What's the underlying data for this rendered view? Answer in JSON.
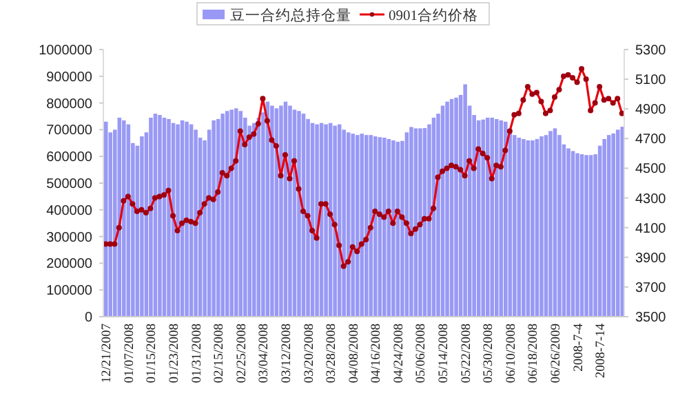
{
  "chart_data": {
    "type": "bar",
    "legend": "top",
    "categories": [
      "12/21/2007",
      null,
      null,
      null,
      null,
      "01/07/2008",
      null,
      null,
      null,
      null,
      "01/15/2008",
      null,
      null,
      null,
      null,
      "01/23/2008",
      null,
      null,
      null,
      null,
      "01/31/2008",
      null,
      null,
      null,
      null,
      "02/15/2008",
      null,
      null,
      null,
      null,
      "02/25/2008",
      null,
      null,
      null,
      null,
      "03/04/2008",
      null,
      null,
      null,
      null,
      "03/12/2008",
      null,
      null,
      null,
      null,
      "03/20/2008",
      null,
      null,
      null,
      null,
      "03/28/2008",
      null,
      null,
      null,
      null,
      "04/08/2008",
      null,
      null,
      null,
      null,
      "04/16/2008",
      null,
      null,
      null,
      null,
      "04/24/2008",
      null,
      null,
      null,
      null,
      "05/06/2008",
      null,
      null,
      null,
      null,
      "05/14/2008",
      null,
      null,
      null,
      null,
      "05/22/2008",
      null,
      null,
      null,
      null,
      "05/30/2008",
      null,
      null,
      null,
      null,
      "06/10/2008",
      null,
      null,
      null,
      null,
      "06/18/2008",
      null,
      null,
      null,
      null,
      "06/26/2009",
      null,
      null,
      null,
      null,
      "2008-7-4",
      null,
      null,
      null,
      null,
      "2008-7-14",
      null,
      null,
      null,
      null,
      null
    ],
    "series": [
      {
        "name": "豆一合约总持仓量",
        "color": "#9999f5",
        "values": [
          730000,
          690000,
          700000,
          745000,
          735000,
          720000,
          650000,
          640000,
          675000,
          690000,
          745000,
          760000,
          755000,
          745000,
          740000,
          725000,
          720000,
          735000,
          730000,
          720000,
          700000,
          670000,
          660000,
          700000,
          735000,
          740000,
          760000,
          770000,
          775000,
          780000,
          770000,
          745000,
          715000,
          725000,
          745000,
          765000,
          805000,
          790000,
          780000,
          790000,
          805000,
          790000,
          775000,
          770000,
          760000,
          740000,
          725000,
          720000,
          725000,
          720000,
          725000,
          715000,
          720000,
          700000,
          690000,
          685000,
          680000,
          685000,
          680000,
          680000,
          675000,
          672000,
          670000,
          665000,
          660000,
          655000,
          658000,
          690000,
          710000,
          705000,
          705000,
          706000,
          720000,
          745000,
          760000,
          790000,
          805000,
          815000,
          820000,
          830000,
          870000,
          790000,
          755000,
          735000,
          738000,
          745000,
          745000,
          740000,
          735000,
          730000,
          700000,
          680000,
          670000,
          665000,
          660000,
          660000,
          665000,
          675000,
          680000,
          695000,
          705000,
          680000,
          645000,
          630000,
          620000,
          612000,
          608000,
          605000,
          605000,
          608000,
          640000,
          665000,
          680000,
          686000,
          700000,
          711000
        ]
      },
      {
        "name": "0901合约价格",
        "type": "line",
        "axis": "y2",
        "color": "#e8000b",
        "marker": "circle",
        "values": [
          3990,
          3990,
          3990,
          4100,
          4280,
          4310,
          4260,
          4210,
          4220,
          4200,
          4230,
          4300,
          4310,
          4320,
          4350,
          4180,
          4080,
          4130,
          4150,
          4140,
          4130,
          4200,
          4260,
          4300,
          4290,
          4340,
          4470,
          4450,
          4500,
          4550,
          4750,
          4660,
          4710,
          4730,
          4800,
          4970,
          4820,
          4690,
          4650,
          4450,
          4590,
          4430,
          4550,
          4360,
          4210,
          4180,
          4080,
          4030,
          4260,
          4260,
          4190,
          4120,
          3980,
          3840,
          3870,
          3970,
          3940,
          3990,
          4020,
          4100,
          4210,
          4190,
          4170,
          4210,
          4130,
          4210,
          4170,
          4130,
          4060,
          4090,
          4120,
          4160,
          4160,
          4230,
          4440,
          4480,
          4500,
          4520,
          4510,
          4490,
          4450,
          4550,
          4500,
          4630,
          4600,
          4570,
          4430,
          4520,
          4510,
          4620,
          4750,
          4860,
          4870,
          4960,
          5050,
          5000,
          5010,
          4950,
          4870,
          4890,
          4980,
          5030,
          5120,
          5130,
          5110,
          5080,
          5170,
          5100,
          4890,
          4940,
          5050,
          4960,
          4970,
          4940,
          4970,
          4870
        ]
      }
    ],
    "ylim": [
      0,
      1000000
    ],
    "yticks": [
      0,
      100000,
      200000,
      300000,
      400000,
      500000,
      600000,
      700000,
      800000,
      900000,
      1000000
    ],
    "y2lim": [
      3500,
      5300
    ],
    "y2ticks": [
      3500,
      3700,
      3900,
      4100,
      4300,
      4500,
      4700,
      4900,
      5100,
      5300
    ]
  }
}
